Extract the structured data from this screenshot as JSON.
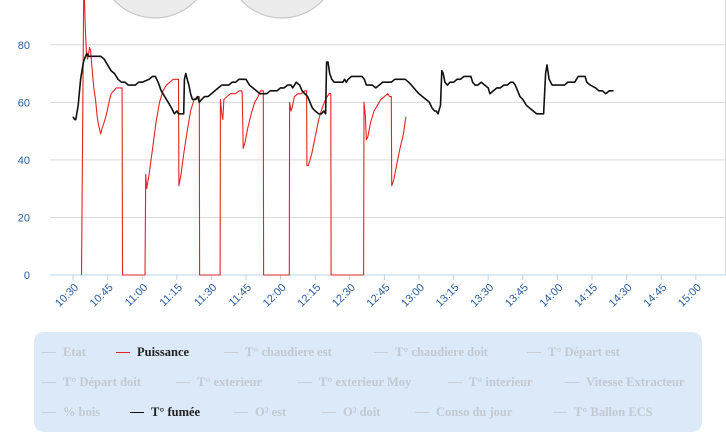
{
  "chart_data": {
    "type": "line",
    "y_ticks": [
      "0",
      "20",
      "40",
      "60",
      "80"
    ],
    "ylim": [
      0,
      100
    ],
    "x_ticks": [
      "10:30",
      "10:45",
      "11:00",
      "11:15",
      "11:30",
      "11:45",
      "12:00",
      "12:15",
      "12:30",
      "12:45",
      "13:00",
      "13:15",
      "13:30",
      "13:45",
      "14:00",
      "14:15",
      "14:30",
      "14:45",
      "15:00"
    ],
    "grid": true,
    "series": [
      {
        "name": "Puissance",
        "color": "#e32424",
        "points": [
          [
            10.245,
            0
          ],
          [
            10.31,
            98
          ],
          [
            10.33,
            96
          ],
          [
            10.36,
            84
          ],
          [
            10.39,
            77
          ],
          [
            10.42,
            75
          ],
          [
            10.45,
            77
          ],
          [
            10.48,
            79
          ],
          [
            10.51,
            78
          ],
          [
            10.55,
            72
          ],
          [
            10.6,
            65
          ],
          [
            10.65,
            61
          ],
          [
            10.7,
            55
          ],
          [
            10.74,
            52
          ],
          [
            10.78,
            50
          ],
          [
            10.8,
            49
          ],
          [
            10.84,
            51
          ],
          [
            10.9,
            53
          ],
          [
            10.97,
            56
          ],
          [
            11.04,
            60
          ],
          [
            11.1,
            63
          ],
          [
            11.18,
            64
          ],
          [
            11.25,
            65
          ],
          [
            11.35,
            65
          ],
          [
            11.42,
            65
          ],
          [
            11.43,
            0
          ],
          [
            12.08,
            0
          ],
          [
            12.1,
            35
          ],
          [
            12.13,
            30
          ],
          [
            12.2,
            35
          ],
          [
            12.3,
            44
          ],
          [
            12.4,
            53
          ],
          [
            12.5,
            60
          ],
          [
            12.6,
            64
          ],
          [
            12.7,
            66
          ],
          [
            12.8,
            67
          ],
          [
            12.9,
            68
          ],
          [
            13.0,
            68
          ],
          [
            13.05,
            68
          ],
          [
            13.06,
            31
          ],
          [
            13.12,
            35
          ],
          [
            13.2,
            42
          ],
          [
            13.3,
            50
          ],
          [
            13.4,
            57
          ],
          [
            13.5,
            61
          ],
          [
            13.6,
            62
          ],
          [
            13.65,
            62
          ],
          [
            13.66,
            0
          ],
          [
            14.25,
            0
          ],
          [
            14.26,
            61
          ],
          [
            14.3,
            56
          ],
          [
            14.33,
            54
          ],
          [
            14.36,
            61
          ],
          [
            14.45,
            62
          ],
          [
            14.55,
            63
          ],
          [
            14.62,
            63
          ],
          [
            14.7,
            63
          ],
          [
            14.8,
            64
          ],
          [
            14.88,
            64
          ],
          [
            14.89,
            63
          ],
          [
            14.92,
            44
          ],
          [
            14.97,
            46
          ],
          [
            15.05,
            51
          ],
          [
            15.15,
            56
          ],
          [
            15.25,
            60
          ],
          [
            15.35,
            62
          ],
          [
            15.42,
            64
          ],
          [
            15.5,
            64
          ],
          [
            15.51,
            0
          ],
          [
            16.25,
            0
          ],
          [
            16.26,
            60
          ],
          [
            16.3,
            57
          ],
          [
            16.33,
            58
          ],
          [
            16.4,
            62
          ],
          [
            16.5,
            63
          ],
          [
            16.6,
            63
          ],
          [
            16.7,
            64
          ],
          [
            16.75,
            64
          ],
          [
            16.76,
            38
          ],
          [
            16.8,
            38
          ],
          [
            16.9,
            42
          ],
          [
            17.0,
            48
          ],
          [
            17.1,
            54
          ],
          [
            17.2,
            58
          ],
          [
            17.3,
            61
          ],
          [
            17.4,
            63
          ],
          [
            17.45,
            63
          ],
          [
            17.46,
            0
          ],
          [
            18.4,
            0
          ],
          [
            18.41,
            60
          ],
          [
            18.45,
            55
          ],
          [
            18.48,
            47
          ],
          [
            18.52,
            48
          ],
          [
            18.6,
            53
          ],
          [
            18.7,
            57
          ],
          [
            18.8,
            59
          ],
          [
            18.9,
            61
          ],
          [
            19.0,
            62
          ],
          [
            19.1,
            63
          ],
          [
            19.15,
            62
          ],
          [
            19.2,
            62
          ],
          [
            19.21,
            31
          ],
          [
            19.27,
            33
          ],
          [
            19.35,
            38
          ],
          [
            19.45,
            44
          ],
          [
            19.55,
            49
          ],
          [
            19.62,
            55
          ]
        ]
      },
      {
        "name": "T° fumée",
        "color": "#111111",
        "points": [
          [
            10.0,
            55
          ],
          [
            10.05,
            54
          ],
          [
            10.08,
            54
          ],
          [
            10.15,
            59
          ],
          [
            10.22,
            68
          ],
          [
            10.3,
            74
          ],
          [
            10.36,
            76
          ],
          [
            10.4,
            77
          ],
          [
            10.45,
            76
          ],
          [
            10.5,
            76
          ],
          [
            10.6,
            76
          ],
          [
            10.8,
            76
          ],
          [
            10.9,
            75
          ],
          [
            11.0,
            73
          ],
          [
            11.1,
            71
          ],
          [
            11.2,
            70
          ],
          [
            11.3,
            68
          ],
          [
            11.4,
            67
          ],
          [
            11.5,
            67
          ],
          [
            11.6,
            66
          ],
          [
            11.8,
            66
          ],
          [
            11.9,
            67
          ],
          [
            12.0,
            67
          ],
          [
            12.2,
            68
          ],
          [
            12.3,
            69
          ],
          [
            12.38,
            69
          ],
          [
            12.46,
            67
          ],
          [
            12.55,
            64
          ],
          [
            12.65,
            62
          ],
          [
            12.75,
            60
          ],
          [
            12.85,
            58
          ],
          [
            12.93,
            56
          ],
          [
            13.0,
            57
          ],
          [
            13.05,
            56
          ],
          [
            13.1,
            56
          ],
          [
            13.2,
            56
          ],
          [
            13.22,
            68
          ],
          [
            13.26,
            70
          ],
          [
            13.3,
            68
          ],
          [
            13.35,
            66
          ],
          [
            13.4,
            63
          ],
          [
            13.45,
            61
          ],
          [
            13.5,
            61
          ],
          [
            13.55,
            61
          ],
          [
            13.6,
            62
          ],
          [
            13.65,
            60
          ],
          [
            13.72,
            61
          ],
          [
            13.8,
            62
          ],
          [
            13.9,
            62
          ],
          [
            14.0,
            63
          ],
          [
            14.1,
            64
          ],
          [
            14.2,
            65
          ],
          [
            14.3,
            66
          ],
          [
            14.4,
            66
          ],
          [
            14.5,
            66
          ],
          [
            14.6,
            67
          ],
          [
            14.7,
            67
          ],
          [
            14.8,
            68
          ],
          [
            14.9,
            68
          ],
          [
            15.0,
            68
          ],
          [
            15.05,
            67
          ],
          [
            15.1,
            66
          ],
          [
            15.2,
            65
          ],
          [
            15.3,
            64
          ],
          [
            15.4,
            63
          ],
          [
            15.5,
            63
          ],
          [
            15.6,
            63
          ],
          [
            15.7,
            64
          ],
          [
            15.8,
            64
          ],
          [
            15.9,
            64
          ],
          [
            16.0,
            65
          ],
          [
            16.1,
            65
          ],
          [
            16.2,
            66
          ],
          [
            16.3,
            66
          ],
          [
            16.35,
            65
          ],
          [
            16.45,
            67
          ],
          [
            16.55,
            66
          ],
          [
            16.62,
            64
          ],
          [
            16.7,
            63
          ],
          [
            16.78,
            62
          ],
          [
            16.85,
            60
          ],
          [
            16.92,
            58
          ],
          [
            17.0,
            57
          ],
          [
            17.1,
            56
          ],
          [
            17.18,
            56
          ],
          [
            17.25,
            57
          ],
          [
            17.3,
            56
          ],
          [
            17.33,
            74
          ],
          [
            17.37,
            74
          ],
          [
            17.42,
            70
          ],
          [
            17.48,
            68
          ],
          [
            17.55,
            67
          ],
          [
            17.7,
            67
          ],
          [
            17.8,
            67
          ],
          [
            17.85,
            68
          ],
          [
            17.9,
            67
          ],
          [
            17.95,
            68
          ],
          [
            18.05,
            69
          ],
          [
            18.2,
            69
          ],
          [
            18.35,
            69
          ],
          [
            18.42,
            68
          ],
          [
            18.48,
            66
          ],
          [
            18.55,
            66
          ],
          [
            18.65,
            66
          ],
          [
            18.75,
            65
          ],
          [
            18.85,
            66
          ],
          [
            18.95,
            67
          ],
          [
            19.05,
            67
          ],
          [
            19.15,
            67
          ],
          [
            19.2,
            67
          ],
          [
            19.3,
            68
          ],
          [
            19.45,
            68
          ],
          [
            19.6,
            68
          ],
          [
            19.7,
            67
          ],
          [
            19.78,
            66
          ],
          [
            19.85,
            65
          ],
          [
            19.92,
            64
          ],
          [
            20.0,
            63
          ],
          [
            20.1,
            62
          ],
          [
            20.2,
            61
          ],
          [
            20.3,
            60
          ],
          [
            20.38,
            58
          ],
          [
            20.45,
            57
          ],
          [
            20.5,
            57
          ],
          [
            20.55,
            56
          ],
          [
            20.62,
            59
          ],
          [
            20.66,
            71
          ],
          [
            20.7,
            70
          ],
          [
            20.75,
            67
          ],
          [
            20.82,
            66
          ],
          [
            20.9,
            67
          ],
          [
            21.0,
            67
          ],
          [
            21.1,
            68
          ],
          [
            21.2,
            68
          ],
          [
            21.3,
            69
          ],
          [
            21.4,
            69
          ],
          [
            21.5,
            69
          ],
          [
            21.55,
            67
          ],
          [
            21.62,
            66
          ],
          [
            21.7,
            66
          ],
          [
            21.8,
            67
          ],
          [
            21.9,
            66
          ],
          [
            22.0,
            65
          ],
          [
            22.05,
            63
          ],
          [
            22.15,
            64
          ],
          [
            22.25,
            65
          ],
          [
            22.35,
            65
          ],
          [
            22.45,
            66
          ],
          [
            22.55,
            66
          ],
          [
            22.65,
            67
          ],
          [
            22.72,
            67
          ],
          [
            22.78,
            66
          ],
          [
            22.85,
            64
          ],
          [
            22.92,
            62
          ],
          [
            23.0,
            61
          ],
          [
            23.1,
            59
          ],
          [
            23.2,
            58
          ],
          [
            23.3,
            57
          ],
          [
            23.4,
            56
          ],
          [
            23.5,
            56
          ],
          [
            23.6,
            56
          ],
          [
            23.66,
            70
          ],
          [
            23.7,
            73
          ],
          [
            23.76,
            68
          ],
          [
            23.85,
            66
          ],
          [
            24.0,
            66
          ],
          [
            24.1,
            66
          ],
          [
            24.2,
            66
          ],
          [
            24.3,
            67
          ],
          [
            24.4,
            67
          ],
          [
            24.5,
            67
          ],
          [
            24.6,
            69
          ],
          [
            24.7,
            69
          ],
          [
            24.8,
            69
          ],
          [
            24.85,
            67
          ],
          [
            24.95,
            66
          ],
          [
            25.1,
            65
          ],
          [
            25.2,
            64
          ],
          [
            25.3,
            64
          ],
          [
            25.4,
            63
          ],
          [
            25.5,
            64
          ],
          [
            25.62,
            64
          ]
        ]
      }
    ],
    "gauges": 2
  },
  "legend": {
    "rows": [
      [
        {
          "label": "Etat",
          "active": false
        },
        {
          "label": "Puissance",
          "active": true,
          "color": "#e32424"
        },
        {
          "label": "T° chaudiere est",
          "active": false
        },
        {
          "label": "T° chaudiere doit",
          "active": false
        },
        {
          "label": "T° Départ est",
          "active": false
        }
      ],
      [
        {
          "label": "T° Départ doit",
          "active": false
        },
        {
          "label": "T° exterieur",
          "active": false
        },
        {
          "label": "T° exterieur Moy",
          "active": false
        },
        {
          "label": "T° interieur",
          "active": false
        },
        {
          "label": "Vitesse Extracteur",
          "active": false
        }
      ],
      [
        {
          "label": "% bois",
          "active": false
        },
        {
          "label": "T° fumée",
          "active": true,
          "color": "#111111"
        },
        {
          "label": "O² est",
          "active": false
        },
        {
          "label": "O² doit",
          "active": false
        },
        {
          "label": "Conso du jour",
          "active": false
        },
        {
          "label": "T° Ballon ECS",
          "active": false
        }
      ]
    ]
  }
}
